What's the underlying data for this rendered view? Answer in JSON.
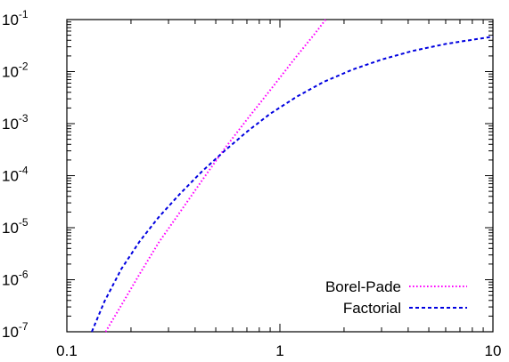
{
  "chart_data": {
    "type": "line",
    "title": "",
    "xlabel": "",
    "ylabel": "",
    "x_scale": "log",
    "y_scale": "log",
    "xlim": [
      0.1,
      10
    ],
    "ylim": [
      1e-07,
      0.1
    ],
    "x_ticks": [
      {
        "value": 0.1,
        "label": "0.1"
      },
      {
        "value": 1,
        "label": "1"
      },
      {
        "value": 10,
        "label": "10"
      }
    ],
    "y_ticks": [
      {
        "value": 1e-07,
        "base": "10",
        "exp": "-7"
      },
      {
        "value": 1e-06,
        "base": "10",
        "exp": "-6"
      },
      {
        "value": 1e-05,
        "base": "10",
        "exp": "-5"
      },
      {
        "value": 0.0001,
        "base": "10",
        "exp": "-4"
      },
      {
        "value": 0.001,
        "base": "10",
        "exp": "-3"
      },
      {
        "value": 0.01,
        "base": "10",
        "exp": "-2"
      },
      {
        "value": 0.1,
        "base": "10",
        "exp": "-1"
      }
    ],
    "grid": false,
    "legend_position": "bottom-right",
    "series": [
      {
        "name": "Borel-Pade",
        "color": "#ff00ff",
        "style": "dotted",
        "x": [
          0.152,
          0.18,
          0.22,
          0.27,
          0.34,
          0.43,
          0.55,
          0.7,
          0.9,
          1.15,
          1.45,
          1.64
        ],
        "y": [
          1e-07,
          3.2e-07,
          1.3e-06,
          5.2e-06,
          2e-05,
          8e-05,
          0.00033,
          0.0012,
          0.0044,
          0.016,
          0.052,
          0.1
        ]
      },
      {
        "name": "Factorial",
        "color": "#0000e0",
        "style": "dashed",
        "x": [
          0.131,
          0.15,
          0.18,
          0.22,
          0.27,
          0.34,
          0.43,
          0.55,
          0.7,
          0.9,
          1.2,
          1.6,
          2.2,
          3.0,
          4.2,
          6.0,
          8.0,
          10.0
        ],
        "y": [
          1e-07,
          3.8e-07,
          1.6e-06,
          5.5e-06,
          1.6e-05,
          4.5e-05,
          0.00012,
          0.0003,
          0.0007,
          0.00155,
          0.0033,
          0.0063,
          0.011,
          0.017,
          0.025,
          0.034,
          0.041,
          0.047
        ]
      }
    ]
  }
}
